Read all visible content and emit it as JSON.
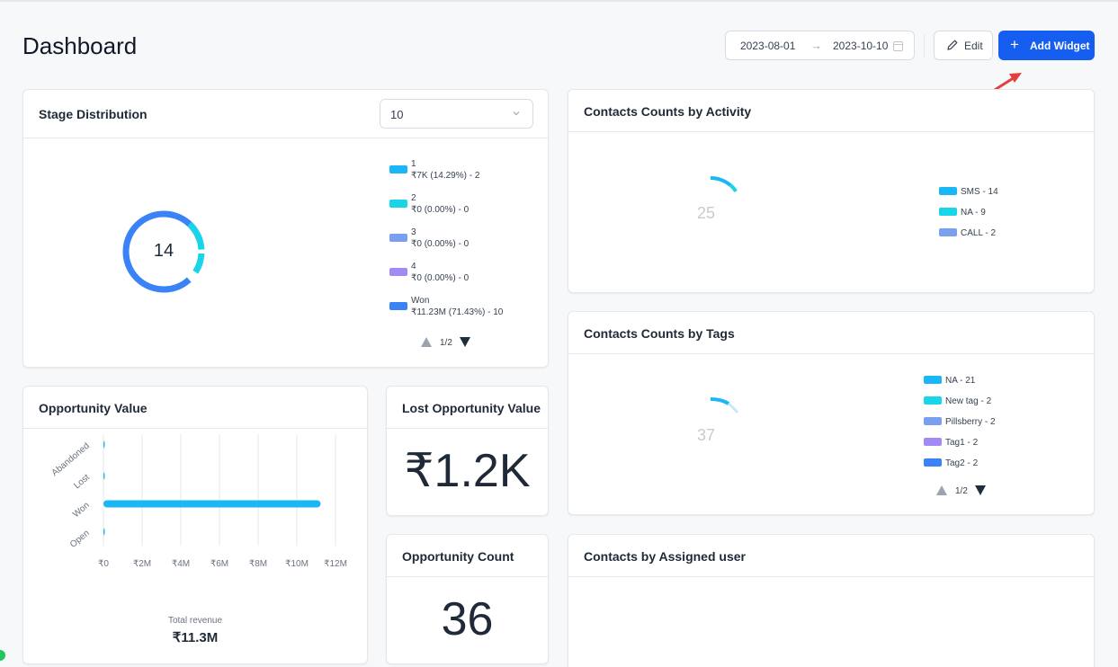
{
  "page": {
    "title": "Dashboard"
  },
  "toolbar": {
    "date_from": "2023-08-01",
    "date_to": "2023-10-10",
    "edit_label": "Edit",
    "add_widget_label": "Add Widget",
    "accent_color": "#155eef"
  },
  "stage_distribution": {
    "title": "Stage Distribution",
    "select_value": "10",
    "total": "14",
    "legend": [
      {
        "name": "1",
        "detail": "₹7K (14.29%) - 2",
        "color": "#1ab6f5"
      },
      {
        "name": "2",
        "detail": "₹0 (0.00%) - 0",
        "color": "#19d5e8"
      },
      {
        "name": "3",
        "detail": "₹0 (0.00%) - 0",
        "color": "#7b9ff0"
      },
      {
        "name": "4",
        "detail": "₹0 (0.00%) - 0",
        "color": "#a389f4"
      },
      {
        "name": "Won",
        "detail": "₹11.23M (71.43%) - 10",
        "color": "#3b82f6"
      }
    ],
    "pager": "1/2"
  },
  "contacts_activity": {
    "title": "Contacts Counts by Activity",
    "total": "25",
    "legend": [
      {
        "label": "SMS - 14",
        "color": "#1ab6f5"
      },
      {
        "label": "NA - 9",
        "color": "#19d5e8"
      },
      {
        "label": "CALL - 2",
        "color": "#7b9ff0"
      }
    ]
  },
  "contacts_tags": {
    "title": "Contacts Counts by Tags",
    "total": "37",
    "legend": [
      {
        "label": "NA - 21",
        "color": "#1ab6f5"
      },
      {
        "label": "New tag - 2",
        "color": "#19d5e8"
      },
      {
        "label": "Pillsberry - 2",
        "color": "#7b9ff0"
      },
      {
        "label": "Tag1 - 2",
        "color": "#a389f4"
      },
      {
        "label": "Tag2 - 2",
        "color": "#3b82f6"
      }
    ],
    "pager": "1/2"
  },
  "opportunity_value": {
    "title": "Opportunity Value",
    "total_label": "Total revenue",
    "total_value": "₹11.3M"
  },
  "lost_opportunity": {
    "title": "Lost Opportunity Value",
    "value": "₹1.2K"
  },
  "opportunity_count": {
    "title": "Opportunity Count",
    "value": "36"
  },
  "contacts_assigned": {
    "title": "Contacts by Assigned user"
  },
  "chart_data": {
    "type": "bar",
    "orientation": "horizontal",
    "title": "Opportunity Value",
    "categories": [
      "Abandoned",
      "Lost",
      "Won",
      "Open"
    ],
    "values": [
      0,
      0,
      11.23,
      0.05
    ],
    "unit": "₹M",
    "xlabel": "",
    "ylabel": "",
    "xlim": [
      0,
      12
    ],
    "x_ticks": [
      "₹0",
      "₹2M",
      "₹4M",
      "₹6M",
      "₹8M",
      "₹10M",
      "₹12M"
    ],
    "grid": true,
    "color": "#1ab6f5"
  }
}
